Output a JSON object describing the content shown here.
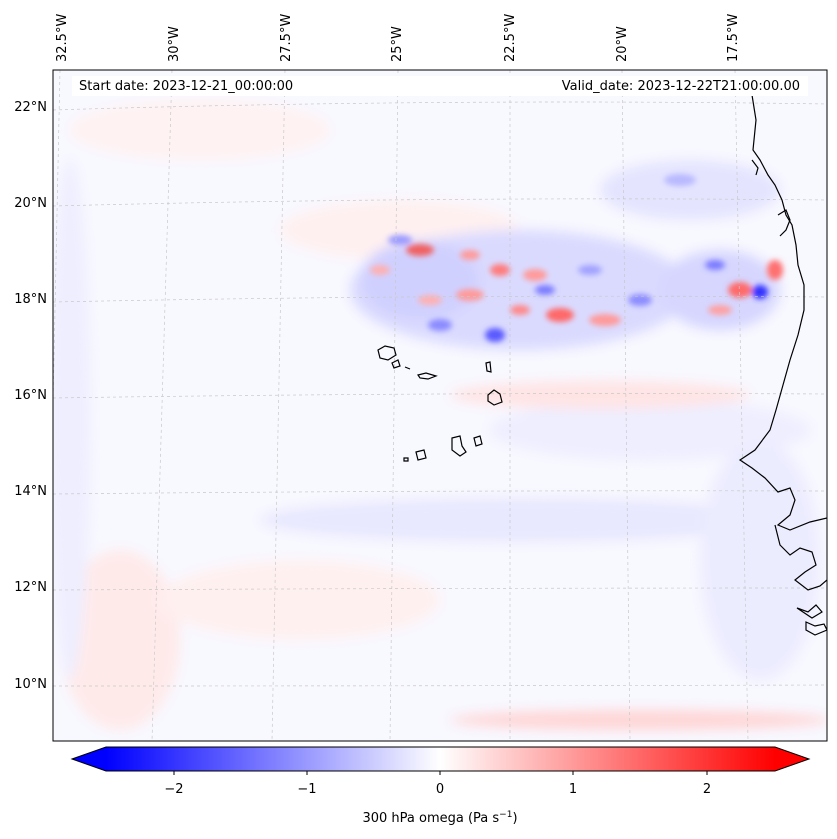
{
  "map": {
    "header": {
      "start_date": "Start date: 2023-12-21_00:00:00",
      "valid_date": "Valid_date: 2023-12-22T21:00:00.00"
    },
    "longitude_labels": [
      "32.5°W",
      "30°W",
      "27.5°W",
      "25°W",
      "22.5°W",
      "20°W",
      "17.5°W"
    ],
    "latitude_labels": [
      "22°N",
      "20°N",
      "18°N",
      "16°N",
      "14°N",
      "12°N",
      "10°N"
    ]
  },
  "colorbar": {
    "ticks": [
      "−2",
      "−1",
      "0",
      "1",
      "2"
    ],
    "label": "300 hPa omega (Pa s",
    "label_exponent": "−1",
    "label_tail": ")",
    "range": [
      -2.6,
      2.6
    ],
    "colors": {
      "negative": "#0000ff",
      "zero": "#ffffff",
      "positive": "#ff0000"
    }
  }
}
